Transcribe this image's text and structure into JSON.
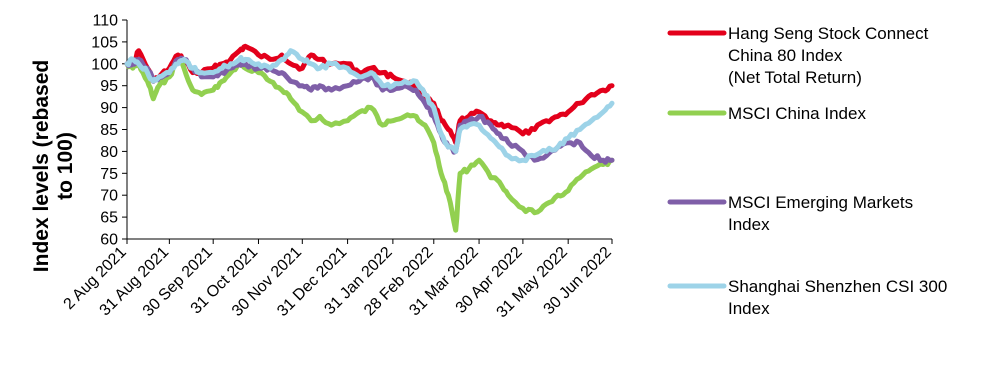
{
  "chart_data": {
    "type": "line",
    "ylabel": "Index levels (rebased to 100)",
    "ylim": [
      60,
      110
    ],
    "yticks": [
      60,
      65,
      70,
      75,
      80,
      85,
      90,
      95,
      100,
      105,
      110
    ],
    "xticks": [
      "2 Aug 2021",
      "31 Aug 2021",
      "30 Sep 2021",
      "31 Oct 2021",
      "30 Nov 2021",
      "31 Dec 2021",
      "31 Jan 2022",
      "28 Feb 2022",
      "31 Mar 2022",
      "30 Apr 2022",
      "31 May 2022",
      "30 Jun 2022"
    ],
    "legend_position": "right",
    "grid": false,
    "series": [
      {
        "name": "Hang Seng Stock Connect China 80 Index (Net Total Return)",
        "color": "#e3001b",
        "values": [
          [
            "2 Aug 2021",
            100
          ],
          [
            "6 Aug 2021",
            100
          ],
          [
            "10 Aug 2021",
            103
          ],
          [
            "16 Aug 2021",
            99
          ],
          [
            "20 Aug 2021",
            96
          ],
          [
            "24 Aug 2021",
            97
          ],
          [
            "31 Aug 2021",
            99
          ],
          [
            "6 Sep 2021",
            102
          ],
          [
            "10 Sep 2021",
            101
          ],
          [
            "16 Sep 2021",
            98
          ],
          [
            "22 Sep 2021",
            98
          ],
          [
            "30 Sep 2021",
            99
          ],
          [
            "6 Oct 2021",
            100
          ],
          [
            "12 Oct 2021",
            101
          ],
          [
            "18 Oct 2021",
            103
          ],
          [
            "22 Oct 2021",
            104
          ],
          [
            "31 Oct 2021",
            102
          ],
          [
            "8 Nov 2021",
            101
          ],
          [
            "16 Nov 2021",
            102
          ],
          [
            "22 Nov 2021",
            100
          ],
          [
            "30 Nov 2021",
            99
          ],
          [
            "6 Dec 2021",
            102
          ],
          [
            "12 Dec 2021",
            101
          ],
          [
            "20 Dec 2021",
            100
          ],
          [
            "31 Dec 2021",
            100
          ],
          [
            "8 Jan 2022",
            98
          ],
          [
            "16 Jan 2022",
            99
          ],
          [
            "24 Jan 2022",
            98
          ],
          [
            "31 Jan 2022",
            97
          ],
          [
            "8 Feb 2022",
            96
          ],
          [
            "16 Feb 2022",
            95
          ],
          [
            "22 Feb 2022",
            93
          ],
          [
            "28 Feb 2022",
            91
          ],
          [
            "5 Mar 2022",
            87
          ],
          [
            "10 Mar 2022",
            85
          ],
          [
            "15 Mar 2022",
            82
          ],
          [
            "18 Mar 2022",
            87
          ],
          [
            "24 Mar 2022",
            88
          ],
          [
            "31 Mar 2022",
            89
          ],
          [
            "8 Apr 2022",
            87
          ],
          [
            "14 Apr 2022",
            86
          ],
          [
            "20 Apr 2022",
            86
          ],
          [
            "30 Apr 2022",
            84
          ],
          [
            "8 May 2022",
            85
          ],
          [
            "16 May 2022",
            87
          ],
          [
            "24 May 2022",
            88
          ],
          [
            "31 May 2022",
            89
          ],
          [
            "8 Jun 2022",
            91
          ],
          [
            "16 Jun 2022",
            93
          ],
          [
            "24 Jun 2022",
            94
          ],
          [
            "30 Jun 2022",
            95
          ]
        ]
      },
      {
        "name": "MSCI China Index",
        "color": "#92d050",
        "values": [
          [
            "2 Aug 2021",
            100
          ],
          [
            "6 Aug 2021",
            99
          ],
          [
            "10 Aug 2021",
            100
          ],
          [
            "16 Aug 2021",
            96
          ],
          [
            "20 Aug 2021",
            92
          ],
          [
            "24 Aug 2021",
            95
          ],
          [
            "31 Aug 2021",
            97
          ],
          [
            "6 Sep 2021",
            101
          ],
          [
            "10 Sep 2021",
            99
          ],
          [
            "16 Sep 2021",
            94
          ],
          [
            "22 Sep 2021",
            93
          ],
          [
            "30 Sep 2021",
            94
          ],
          [
            "6 Oct 2021",
            96
          ],
          [
            "12 Oct 2021",
            98
          ],
          [
            "18 Oct 2021",
            100
          ],
          [
            "22 Oct 2021",
            99
          ],
          [
            "31 Oct 2021",
            98
          ],
          [
            "8 Nov 2021",
            96
          ],
          [
            "16 Nov 2021",
            94
          ],
          [
            "22 Nov 2021",
            92
          ],
          [
            "30 Nov 2021",
            89
          ],
          [
            "6 Dec 2021",
            87
          ],
          [
            "12 Dec 2021",
            88
          ],
          [
            "20 Dec 2021",
            86
          ],
          [
            "31 Dec 2021",
            87
          ],
          [
            "8 Jan 2022",
            89
          ],
          [
            "16 Jan 2022",
            90
          ],
          [
            "24 Jan 2022",
            86
          ],
          [
            "31 Jan 2022",
            87
          ],
          [
            "8 Feb 2022",
            88
          ],
          [
            "16 Feb 2022",
            88
          ],
          [
            "22 Feb 2022",
            86
          ],
          [
            "28 Feb 2022",
            82
          ],
          [
            "5 Mar 2022",
            75
          ],
          [
            "10 Mar 2022",
            70
          ],
          [
            "15 Mar 2022",
            62
          ],
          [
            "18 Mar 2022",
            75
          ],
          [
            "24 Mar 2022",
            76
          ],
          [
            "31 Mar 2022",
            78
          ],
          [
            "8 Apr 2022",
            74
          ],
          [
            "14 Apr 2022",
            73
          ],
          [
            "20 Apr 2022",
            70
          ],
          [
            "30 Apr 2022",
            67
          ],
          [
            "8 May 2022",
            66
          ],
          [
            "16 May 2022",
            68
          ],
          [
            "24 May 2022",
            70
          ],
          [
            "31 May 2022",
            71
          ],
          [
            "8 Jun 2022",
            74
          ],
          [
            "16 Jun 2022",
            76
          ],
          [
            "24 Jun 2022",
            77
          ],
          [
            "30 Jun 2022",
            78
          ]
        ]
      },
      {
        "name": "MSCI Emerging Markets Index",
        "color": "#7f5fa8",
        "values": [
          [
            "2 Aug 2021",
            100
          ],
          [
            "6 Aug 2021",
            100
          ],
          [
            "10 Aug 2021",
            101
          ],
          [
            "16 Aug 2021",
            99
          ],
          [
            "20 Aug 2021",
            96
          ],
          [
            "24 Aug 2021",
            97
          ],
          [
            "31 Aug 2021",
            98
          ],
          [
            "6 Sep 2021",
            101
          ],
          [
            "10 Sep 2021",
            101
          ],
          [
            "16 Sep 2021",
            99
          ],
          [
            "22 Sep 2021",
            97
          ],
          [
            "30 Sep 2021",
            97
          ],
          [
            "6 Oct 2021",
            98
          ],
          [
            "12 Oct 2021",
            99
          ],
          [
            "18 Oct 2021",
            100
          ],
          [
            "22 Oct 2021",
            100
          ],
          [
            "31 Oct 2021",
            99
          ],
          [
            "8 Nov 2021",
            99
          ],
          [
            "16 Nov 2021",
            98
          ],
          [
            "22 Nov 2021",
            96
          ],
          [
            "30 Nov 2021",
            95
          ],
          [
            "6 Dec 2021",
            94
          ],
          [
            "12 Dec 2021",
            95
          ],
          [
            "20 Dec 2021",
            94
          ],
          [
            "31 Dec 2021",
            95
          ],
          [
            "8 Jan 2022",
            96
          ],
          [
            "16 Jan 2022",
            97
          ],
          [
            "24 Jan 2022",
            94
          ],
          [
            "31 Jan 2022",
            94
          ],
          [
            "8 Feb 2022",
            95
          ],
          [
            "16 Feb 2022",
            94
          ],
          [
            "22 Feb 2022",
            91
          ],
          [
            "28 Feb 2022",
            88
          ],
          [
            "5 Mar 2022",
            84
          ],
          [
            "10 Mar 2022",
            81
          ],
          [
            "15 Mar 2022",
            80
          ],
          [
            "18 Mar 2022",
            86
          ],
          [
            "24 Mar 2022",
            87
          ],
          [
            "31 Mar 2022",
            88
          ],
          [
            "8 Apr 2022",
            86
          ],
          [
            "14 Apr 2022",
            84
          ],
          [
            "20 Apr 2022",
            82
          ],
          [
            "30 Apr 2022",
            80
          ],
          [
            "8 May 2022",
            78
          ],
          [
            "16 May 2022",
            79
          ],
          [
            "24 May 2022",
            81
          ],
          [
            "31 May 2022",
            82
          ],
          [
            "8 Jun 2022",
            82
          ],
          [
            "16 Jun 2022",
            79
          ],
          [
            "24 Jun 2022",
            78
          ],
          [
            "30 Jun 2022",
            78
          ]
        ]
      },
      {
        "name": "Shanghai Shenzhen CSI 300 Index",
        "color": "#9dd3e8",
        "values": [
          [
            "2 Aug 2021",
            100
          ],
          [
            "6 Aug 2021",
            101
          ],
          [
            "10 Aug 2021",
            100
          ],
          [
            "16 Aug 2021",
            98
          ],
          [
            "20 Aug 2021",
            96
          ],
          [
            "24 Aug 2021",
            97
          ],
          [
            "31 Aug 2021",
            98
          ],
          [
            "6 Sep 2021",
            100
          ],
          [
            "10 Sep 2021",
            101
          ],
          [
            "16 Sep 2021",
            99
          ],
          [
            "22 Sep 2021",
            98
          ],
          [
            "30 Sep 2021",
            98
          ],
          [
            "6 Oct 2021",
            99
          ],
          [
            "12 Oct 2021",
            100
          ],
          [
            "18 Oct 2021",
            101
          ],
          [
            "22 Oct 2021",
            101
          ],
          [
            "31 Oct 2021",
            100
          ],
          [
            "8 Nov 2021",
            99
          ],
          [
            "16 Nov 2021",
            101
          ],
          [
            "22 Nov 2021",
            103
          ],
          [
            "30 Nov 2021",
            101
          ],
          [
            "6 Dec 2021",
            100
          ],
          [
            "12 Dec 2021",
            99
          ],
          [
            "20 Dec 2021",
            100
          ],
          [
            "31 Dec 2021",
            99
          ],
          [
            "8 Jan 2022",
            97
          ],
          [
            "16 Jan 2022",
            98
          ],
          [
            "24 Jan 2022",
            95
          ],
          [
            "31 Jan 2022",
            95
          ],
          [
            "8 Feb 2022",
            96
          ],
          [
            "16 Feb 2022",
            96
          ],
          [
            "22 Feb 2022",
            93
          ],
          [
            "28 Feb 2022",
            90
          ],
          [
            "5 Mar 2022",
            84
          ],
          [
            "10 Mar 2022",
            81
          ],
          [
            "15 Mar 2022",
            80
          ],
          [
            "18 Mar 2022",
            85
          ],
          [
            "24 Mar 2022",
            86
          ],
          [
            "31 Mar 2022",
            86
          ],
          [
            "8 Apr 2022",
            83
          ],
          [
            "14 Apr 2022",
            81
          ],
          [
            "20 Apr 2022",
            79
          ],
          [
            "30 Apr 2022",
            78
          ],
          [
            "8 May 2022",
            79
          ],
          [
            "16 May 2022",
            80
          ],
          [
            "24 May 2022",
            81
          ],
          [
            "31 May 2022",
            83
          ],
          [
            "8 Jun 2022",
            85
          ],
          [
            "16 Jun 2022",
            87
          ],
          [
            "24 Jun 2022",
            89
          ],
          [
            "30 Jun 2022",
            91
          ]
        ]
      }
    ]
  },
  "legend": [
    {
      "lines": [
        "Hang Seng Stock Connect",
        "China 80 Index",
        "(Net Total Return)"
      ],
      "color": "#e3001b"
    },
    {
      "lines": [
        "MSCI China Index"
      ],
      "color": "#92d050"
    },
    {
      "lines": [
        "MSCI Emerging Markets",
        "Index"
      ],
      "color": "#7f5fa8"
    },
    {
      "lines": [
        "Shanghai Shenzhen CSI 300",
        "Index"
      ],
      "color": "#9dd3e8"
    }
  ]
}
